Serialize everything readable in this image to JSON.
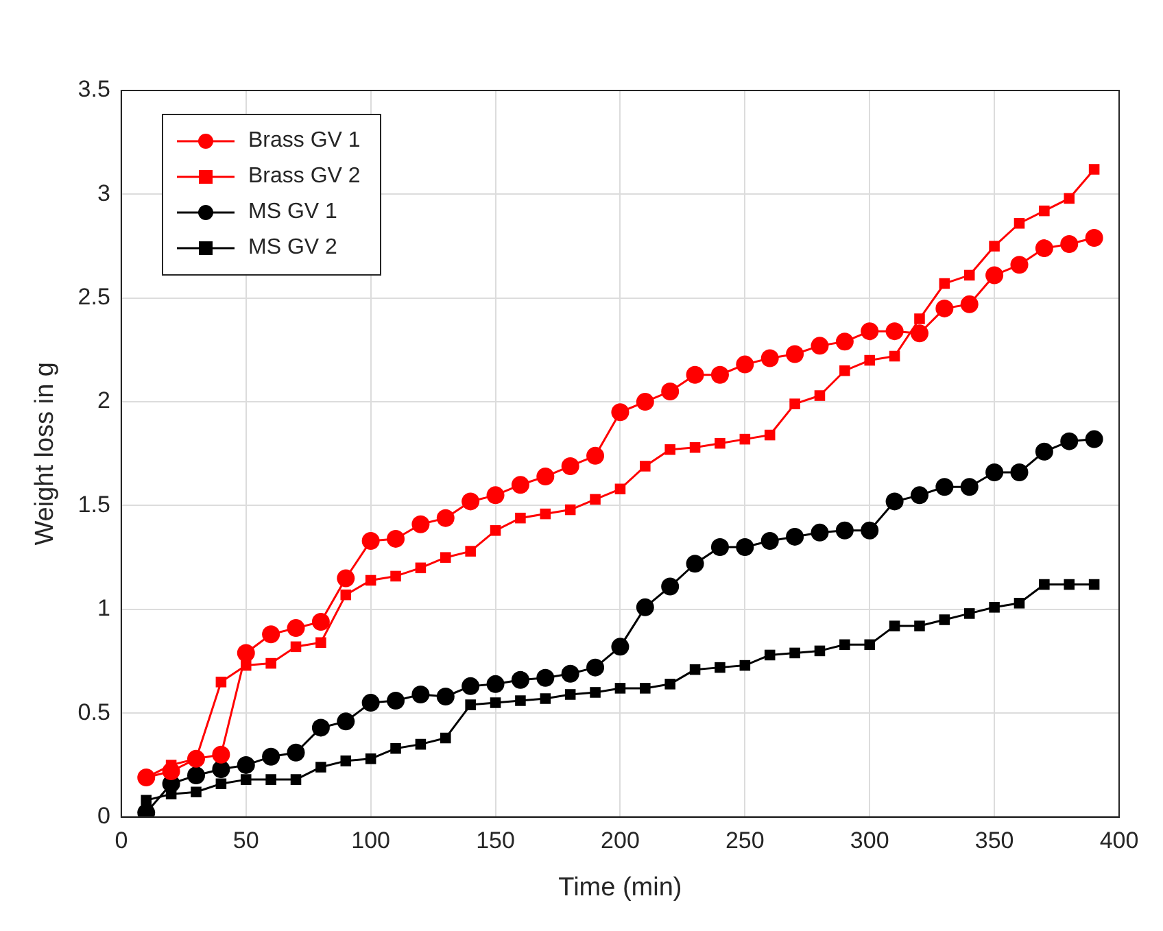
{
  "chart_data": {
    "type": "line",
    "xlabel": "Time (min)",
    "ylabel": "Weight loss in g",
    "x": [
      10,
      20,
      30,
      40,
      50,
      60,
      70,
      80,
      90,
      100,
      110,
      120,
      130,
      140,
      150,
      160,
      170,
      180,
      190,
      200,
      210,
      220,
      230,
      240,
      250,
      260,
      270,
      280,
      290,
      300,
      310,
      320,
      330,
      340,
      350,
      360,
      370,
      380,
      390
    ],
    "series": [
      {
        "name": "Brass GV 1",
        "color": "#ff0000",
        "marker": "circle",
        "values": [
          0.19,
          0.22,
          0.28,
          0.3,
          0.79,
          0.88,
          0.91,
          0.94,
          1.15,
          1.33,
          1.34,
          1.41,
          1.44,
          1.52,
          1.55,
          1.6,
          1.64,
          1.69,
          1.74,
          1.95,
          2.0,
          2.05,
          2.13,
          2.13,
          2.18,
          2.21,
          2.23,
          2.27,
          2.29,
          2.34,
          2.34,
          2.33,
          2.45,
          2.47,
          2.61,
          2.66,
          2.74,
          2.76,
          2.79
        ]
      },
      {
        "name": "Brass GV 2",
        "color": "#ff0000",
        "marker": "square",
        "values": [
          0.19,
          0.25,
          0.28,
          0.65,
          0.73,
          0.74,
          0.82,
          0.84,
          1.07,
          1.14,
          1.16,
          1.2,
          1.25,
          1.28,
          1.38,
          1.44,
          1.46,
          1.48,
          1.53,
          1.58,
          1.69,
          1.77,
          1.78,
          1.8,
          1.82,
          1.84,
          1.99,
          2.03,
          2.15,
          2.2,
          2.22,
          2.4,
          2.57,
          2.61,
          2.75,
          2.86,
          2.92,
          2.98,
          3.12
        ]
      },
      {
        "name": "MS GV 1",
        "color": "#000000",
        "marker": "circle",
        "values": [
          0.02,
          0.16,
          0.2,
          0.23,
          0.25,
          0.29,
          0.31,
          0.43,
          0.46,
          0.55,
          0.56,
          0.59,
          0.58,
          0.63,
          0.64,
          0.66,
          0.67,
          0.69,
          0.72,
          0.82,
          1.01,
          1.11,
          1.22,
          1.3,
          1.3,
          1.33,
          1.35,
          1.37,
          1.38,
          1.38,
          1.52,
          1.55,
          1.59,
          1.59,
          1.66,
          1.66,
          1.76,
          1.81,
          1.82
        ]
      },
      {
        "name": "MS GV 2",
        "color": "#000000",
        "marker": "square",
        "values": [
          0.08,
          0.11,
          0.12,
          0.16,
          0.18,
          0.18,
          0.18,
          0.24,
          0.27,
          0.28,
          0.33,
          0.35,
          0.38,
          0.54,
          0.55,
          0.56,
          0.57,
          0.59,
          0.6,
          0.62,
          0.62,
          0.64,
          0.71,
          0.72,
          0.73,
          0.78,
          0.79,
          0.8,
          0.83,
          0.83,
          0.92,
          0.92,
          0.95,
          0.98,
          1.01,
          1.03,
          1.12,
          1.12,
          1.12
        ]
      }
    ],
    "xlim": [
      0,
      400
    ],
    "xticks": [
      0,
      50,
      100,
      150,
      200,
      250,
      300,
      350,
      400
    ],
    "ylim": [
      0,
      3.5
    ],
    "yticks": [
      0,
      0.5,
      1,
      1.5,
      2,
      2.5,
      3,
      3.5
    ],
    "grid": true,
    "legend": "top left",
    "line_style": "solid"
  }
}
